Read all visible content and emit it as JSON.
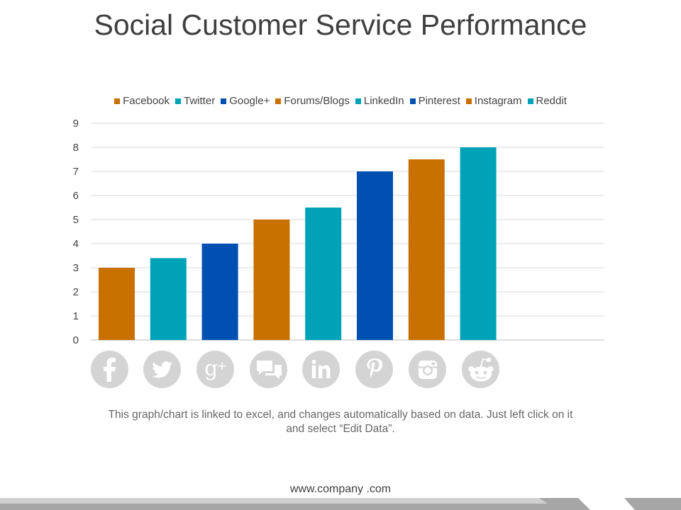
{
  "title": "Social Customer Service Performance",
  "chart_data": {
    "type": "bar",
    "categories": [
      "Facebook",
      "Twitter",
      "Google+",
      "Forums/Blogs",
      "LinkedIn",
      "Pinterest",
      "Instagram",
      "Reddit"
    ],
    "values": [
      3,
      3.4,
      4,
      5,
      5.5,
      7,
      7.5,
      8
    ],
    "colors": [
      "#c87000",
      "#00a2b8",
      "#0050b4",
      "#c87000",
      "#00a2b8",
      "#0050b4",
      "#c87000",
      "#00a2b8"
    ],
    "ylim": [
      0,
      9
    ],
    "yticks": [
      0,
      1,
      2,
      3,
      4,
      5,
      6,
      7,
      8,
      9
    ],
    "grid": true,
    "legend_position": "top",
    "xlabel": "",
    "ylabel": ""
  },
  "icons": [
    "facebook-icon",
    "twitter-icon",
    "google-plus-icon",
    "forums-blogs-icon",
    "linkedin-icon",
    "pinterest-icon",
    "instagram-icon",
    "reddit-icon"
  ],
  "icon_color": "#d4d4d4",
  "caption": "This graph/chart is linked to excel, and changes automatically based on data. Just left click on it and select “Edit Data”.",
  "footer": {
    "url": "www.company .com"
  }
}
